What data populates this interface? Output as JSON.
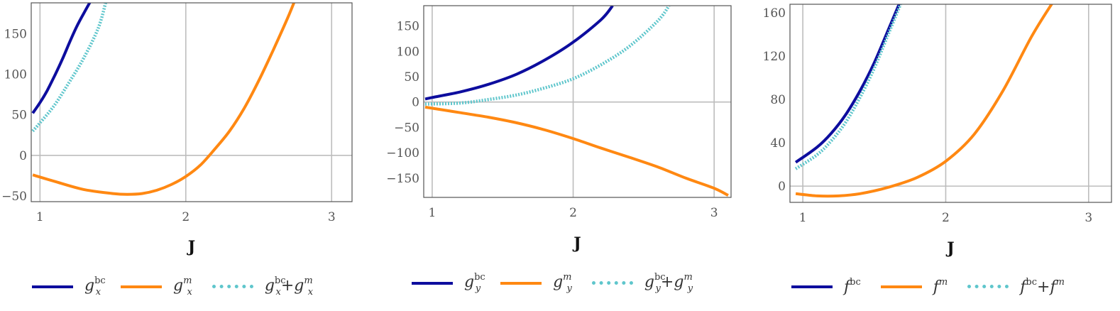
{
  "colors": {
    "bc": "#0d0d9e",
    "m": "#ff8812",
    "sum": "#5fc6cc"
  },
  "chart_data": [
    {
      "type": "line",
      "xlabel": "J",
      "xlim": [
        0.94,
        3.14
      ],
      "ylim": [
        -57,
        188
      ],
      "xticks": [
        1,
        2,
        3
      ],
      "yticks": [
        -50,
        0,
        50,
        100,
        150
      ],
      "grid": true,
      "series": [
        {
          "key": "bc",
          "name": "gx^bc",
          "style": "solid",
          "x": [
            0.95,
            1.0,
            1.05,
            1.1,
            1.15,
            1.2,
            1.25,
            1.3,
            1.35
          ],
          "y": [
            52,
            65,
            80,
            98,
            117,
            138,
            158,
            175,
            191
          ]
        },
        {
          "key": "m",
          "name": "gx^m",
          "style": "solid",
          "x": [
            0.95,
            1.1,
            1.3,
            1.5,
            1.6,
            1.7,
            1.8,
            1.9,
            2.0,
            2.1,
            2.2,
            2.3,
            2.4,
            2.5,
            2.6,
            2.7,
            2.75
          ],
          "y": [
            -24,
            -32,
            -42,
            -47,
            -48,
            -47,
            -43,
            -36,
            -26,
            -12,
            8,
            30,
            58,
            92,
            130,
            170,
            192
          ]
        },
        {
          "key": "sum",
          "name": "gx^bc+gx^m",
          "style": "dotted",
          "x": [
            0.95,
            1.0,
            1.1,
            1.2,
            1.3,
            1.4,
            1.45
          ],
          "y": [
            30,
            40,
            62,
            90,
            120,
            157,
            188
          ]
        }
      ],
      "legend": [
        {
          "key": "bc",
          "base": "g",
          "sub": "x",
          "sup": "bc"
        },
        {
          "key": "m",
          "base": "g",
          "sub": "x",
          "sup": "m"
        },
        {
          "key": "sum",
          "base": "g",
          "sub": "x",
          "sup": "bc",
          "plus": "+",
          "base2": "g",
          "sub2": "x",
          "sup2": "m"
        }
      ]
    },
    {
      "type": "line",
      "xlabel": "J",
      "xlim": [
        0.94,
        3.12
      ],
      "ylim": [
        -188,
        190
      ],
      "xticks": [
        1,
        2,
        3
      ],
      "yticks": [
        -150,
        -100,
        -50,
        0,
        50,
        100,
        150
      ],
      "grid": true,
      "series": [
        {
          "key": "bc",
          "name": "gy^bc",
          "style": "solid",
          "x": [
            0.95,
            1.0,
            1.2,
            1.4,
            1.6,
            1.8,
            2.0,
            2.2,
            2.28
          ],
          "y": [
            6,
            9,
            20,
            35,
            55,
            83,
            118,
            163,
            190
          ]
        },
        {
          "key": "m",
          "name": "gy^m",
          "style": "solid",
          "x": [
            0.95,
            1.2,
            1.4,
            1.6,
            1.8,
            2.0,
            2.2,
            2.4,
            2.6,
            2.8,
            3.0,
            3.1
          ],
          "y": [
            -10,
            -21,
            -30,
            -41,
            -55,
            -72,
            -91,
            -109,
            -128,
            -150,
            -170,
            -184
          ]
        },
        {
          "key": "sum",
          "name": "gy^bc+gy^m",
          "style": "dotted",
          "x": [
            0.95,
            1.2,
            1.4,
            1.6,
            1.8,
            2.0,
            2.2,
            2.4,
            2.6,
            2.68
          ],
          "y": [
            -4,
            -2,
            5,
            14,
            28,
            46,
            74,
            110,
            160,
            190
          ]
        }
      ],
      "legend": [
        {
          "key": "bc",
          "base": "g",
          "sub": "y",
          "sup": "bc"
        },
        {
          "key": "m",
          "base": "g",
          "sub": "y",
          "sup": "m"
        },
        {
          "key": "sum",
          "base": "g",
          "sub": "y",
          "sup": "bc",
          "plus": "+",
          "base2": "g",
          "sub2": "y",
          "sup2": "m"
        }
      ]
    },
    {
      "type": "line",
      "xlabel": "J",
      "xlim": [
        0.91,
        3.16
      ],
      "ylim": [
        -15,
        168
      ],
      "xticks": [
        1,
        2,
        3
      ],
      "yticks": [
        0,
        40,
        80,
        120,
        160
      ],
      "grid": true,
      "series": [
        {
          "key": "bc",
          "name": "f^bc",
          "style": "solid",
          "x": [
            0.95,
            1.1,
            1.2,
            1.3,
            1.4,
            1.5,
            1.6,
            1.68
          ],
          "y": [
            22,
            36,
            49,
            66,
            88,
            114,
            145,
            170
          ]
        },
        {
          "key": "m",
          "name": "f^m",
          "style": "solid",
          "x": [
            0.95,
            1.1,
            1.25,
            1.4,
            1.6,
            1.8,
            2.0,
            2.2,
            2.4,
            2.6,
            2.75
          ],
          "y": [
            -7,
            -9,
            -9,
            -7,
            -1,
            8,
            23,
            48,
            88,
            138,
            170
          ]
        },
        {
          "key": "sum",
          "name": "f^bc+f^m",
          "style": "dotted",
          "x": [
            0.95,
            1.1,
            1.2,
            1.3,
            1.4,
            1.5,
            1.6,
            1.69
          ],
          "y": [
            16,
            29,
            42,
            59,
            82,
            109,
            141,
            170
          ]
        }
      ],
      "legend": [
        {
          "key": "bc",
          "base": "f",
          "sup": "bc"
        },
        {
          "key": "m",
          "base": "f",
          "sup": "m"
        },
        {
          "key": "sum",
          "base": "f",
          "sup": "bc",
          "plus": "+",
          "base2": "f",
          "sup2": "m"
        }
      ]
    }
  ]
}
